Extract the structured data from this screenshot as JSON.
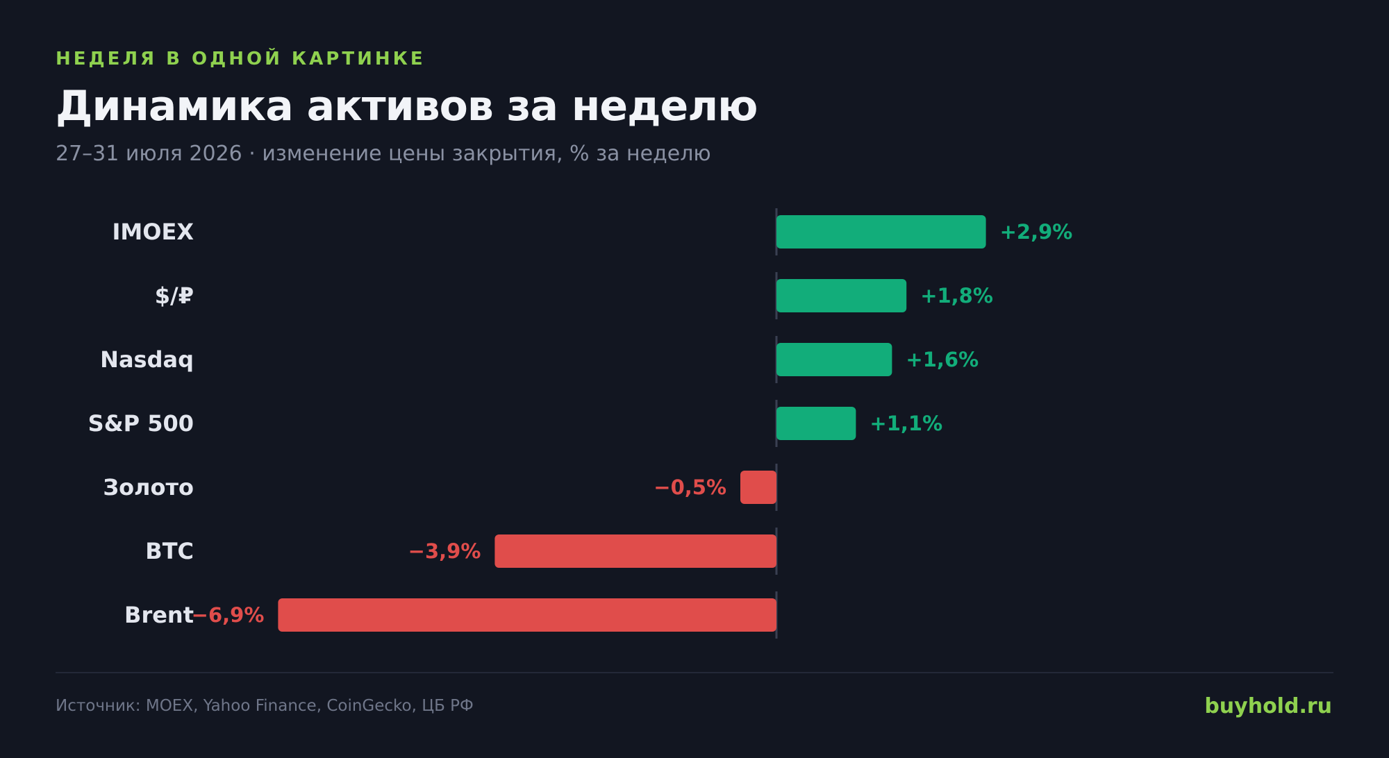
{
  "header": {
    "kicker": "НЕДЕЛЯ В ОДНОЙ КАРТИНКЕ",
    "title": "Динамика активов за неделю",
    "subtitle": "27–31 июля 2026 · изменение цены закрытия, % за неделю"
  },
  "footer": {
    "source": "Источник: MOEX, Yahoo Finance, CoinGecko, ЦБ РФ",
    "brand": "buyhold.ru"
  },
  "colors": {
    "positive": "#12ad7a",
    "negative": "#e04d4b",
    "accent": "#8fd14f",
    "background": "#121621"
  },
  "chart_data": {
    "type": "bar",
    "orientation": "horizontal",
    "categories": [
      "IMOEX",
      "$/₽",
      "Nasdaq",
      "S&P 500",
      "Золото",
      "BTC",
      "Brent"
    ],
    "values": [
      2.9,
      1.8,
      1.6,
      1.1,
      -0.5,
      -3.9,
      -6.9
    ],
    "value_labels": [
      "+2,9%",
      "+1,8%",
      "+1,6%",
      "+1,1%",
      "−0,5%",
      "−3,9%",
      "−6,9%"
    ],
    "xlim": [
      -6.9,
      2.9
    ],
    "grid": false,
    "legend": "none"
  }
}
